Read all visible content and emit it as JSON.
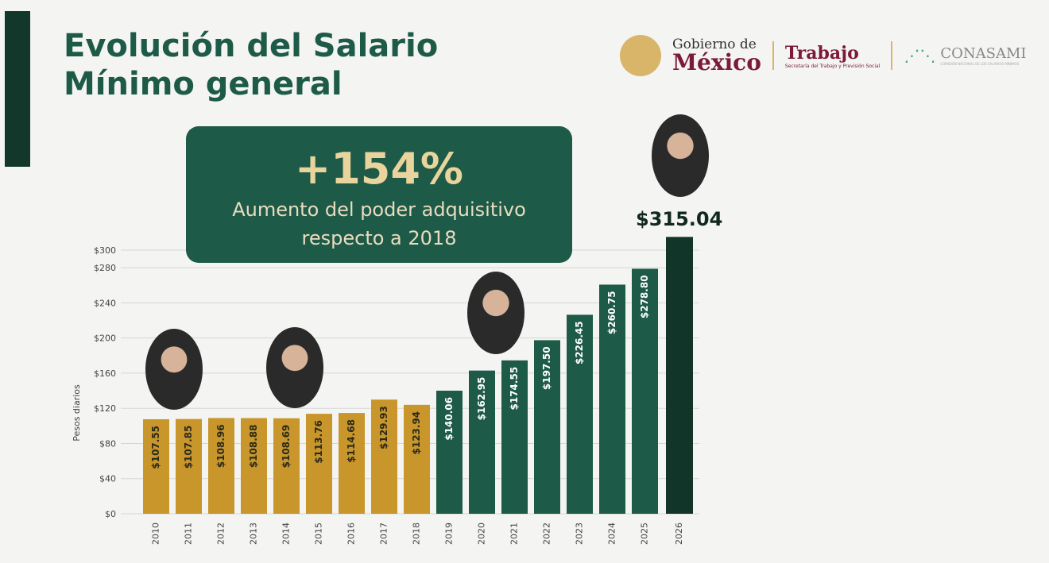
{
  "title": {
    "line1": "Evolución del Salario",
    "line2": "Mínimo general"
  },
  "logos": {
    "gobierno_small": "Gobierno de",
    "gobierno_big": "México",
    "trabajo": "Trabajo",
    "trabajo_sub": "Secretaría del Trabajo y Previsión Social",
    "conasami": "CONASAMI",
    "conasami_sub": "COMISIÓN NACIONAL DE LOS SALARIOS MÍNIMOS"
  },
  "callout": {
    "value": "+154%",
    "line1": "Aumento del poder adquisitivo",
    "line2": "respecto a 2018"
  },
  "colors": {
    "gold": "#c8962a",
    "green": "#1d5a47",
    "dark": "#12352a"
  },
  "chart_data": {
    "type": "bar",
    "ylabel": "Pesos diarios",
    "ylim": [
      0,
      300
    ],
    "yticks": [
      "$0",
      "$40",
      "$80",
      "$120",
      "$160",
      "$200",
      "$240",
      "$280",
      "$300"
    ],
    "ytick_values": [
      0,
      40,
      80,
      120,
      160,
      200,
      240,
      280,
      300
    ],
    "categories": [
      "2010",
      "2011",
      "2012",
      "2013",
      "2014",
      "2015",
      "2016",
      "2017",
      "2018",
      "2019",
      "2020",
      "2021",
      "2022",
      "2023",
      "2024",
      "2025",
      "2026"
    ],
    "values": [
      107.55,
      107.85,
      108.96,
      108.88,
      108.69,
      113.76,
      114.68,
      129.93,
      123.94,
      140.06,
      162.95,
      174.55,
      197.5,
      226.45,
      260.75,
      278.8,
      315.04
    ],
    "labels": [
      "$107.55",
      "$107.85",
      "$108.96",
      "$108.88",
      "$108.69",
      "$113.76",
      "$114.68",
      "$129.93",
      "$123.94",
      "$140.06",
      "$162.95",
      "$174.55",
      "$197.50",
      "$226.45",
      "$260.75",
      "$278.80",
      "$315.04"
    ],
    "groups": [
      "gold",
      "gold",
      "gold",
      "gold",
      "gold",
      "gold",
      "gold",
      "gold",
      "gold",
      "green",
      "green",
      "green",
      "green",
      "green",
      "green",
      "green",
      "dark"
    ]
  }
}
